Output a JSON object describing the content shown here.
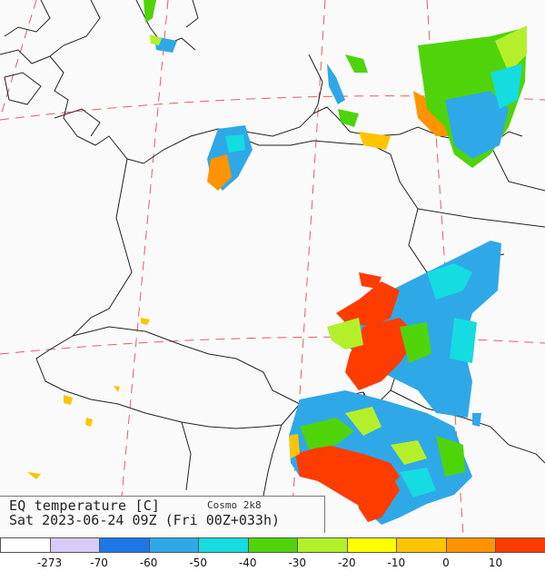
{
  "map": {
    "title": "EQ temperature [C]",
    "model": "Cosmo 2k8",
    "datetime": "Sat 2023-06-24 09Z (Fri 00Z+033h)"
  },
  "legend": {
    "labels": [
      "-273",
      "-70",
      "-60",
      "-50",
      "-40",
      "-30",
      "-20",
      "-10",
      "0",
      "10"
    ],
    "colors": [
      "#ffffff",
      "#d6ccf7",
      "#1c78e8",
      "#2fa8e8",
      "#14dce0",
      "#4fd40a",
      "#b4f02a",
      "#ffff00",
      "#ffc400",
      "#ff9400",
      "#ff3c00"
    ]
  }
}
